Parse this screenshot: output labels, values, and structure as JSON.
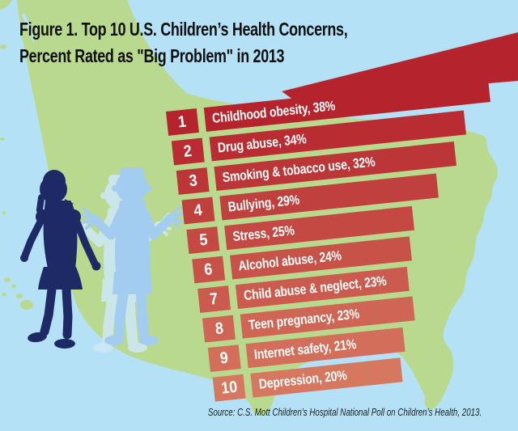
{
  "figure": {
    "title_line1": "Figure 1. Top 10 U.S. Children’s Health Concerns,",
    "title_line2": "Percent Rated as \"Big Problem\" in 2013",
    "source": "Source: C.S. Mott Children’s Hospital National Poll on Children’s Health, 2013."
  },
  "chart_data": {
    "type": "bar",
    "orientation": "horizontal",
    "title": "Top 10 U.S. Children’s Health Concerns, Percent Rated as \"Big Problem\" in 2013",
    "unit": "%",
    "xlim": [
      0,
      40
    ],
    "ranks": [
      1,
      2,
      3,
      4,
      5,
      6,
      7,
      8,
      9,
      10
    ],
    "categories": [
      "Childhood obesity",
      "Drug abuse",
      "Smoking & tobacco use",
      "Bullying",
      "Stress",
      "Alcohol abuse",
      "Child abuse & neglect",
      "Teen pregnancy",
      "Internet safety",
      "Depression"
    ],
    "values": [
      38,
      34,
      32,
      29,
      25,
      24,
      23,
      23,
      21,
      20
    ],
    "bar_labels": [
      "Childhood obesity, 38%",
      "Drug abuse, 34%",
      "Smoking & tobacco use, 32%",
      "Bullying, 29%",
      "Stress, 25%",
      "Alcohol abuse, 24%",
      "Child abuse & neglect, 23%",
      "Teen pregnancy, 23%",
      "Internet safety, 21%",
      "Depression, 20%"
    ],
    "bar_color_start": "#b5242c",
    "bar_color_end": "#d6775f",
    "legend": "none",
    "grid": "off"
  },
  "scene": {
    "background_color": "#b4e1f6",
    "map_color": "#b9da8e",
    "girl_color": "#1e2a66",
    "boy_color": "#a3cdf0",
    "boy_shadow_color": "#cfe9f8",
    "title_color": "#101010",
    "bar_text_color": "#ffffff",
    "source_color": "#222222"
  }
}
